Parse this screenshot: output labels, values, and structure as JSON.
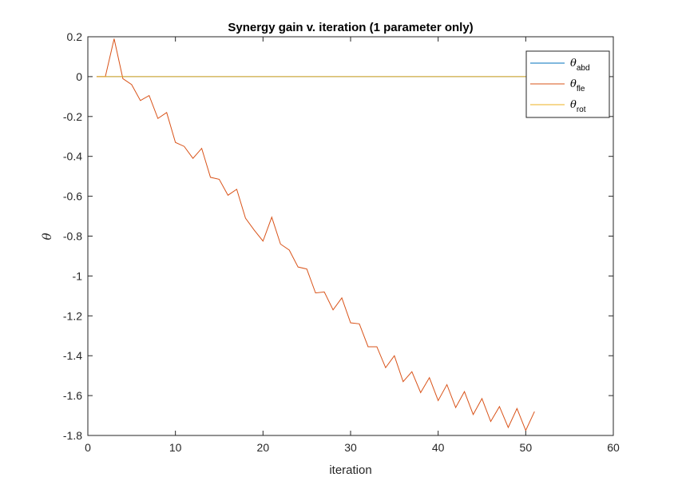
{
  "chart_data": {
    "type": "line",
    "title": "Synergy gain v. iteration (1 parameter only)",
    "xlabel": "iteration",
    "ylabel": "θ",
    "xlim": [
      0,
      60
    ],
    "ylim": [
      -1.8,
      0.2
    ],
    "xticks": [
      0,
      10,
      20,
      30,
      40,
      50,
      60
    ],
    "yticks": [
      0.2,
      0,
      -0.2,
      -0.4,
      -0.6,
      -0.8,
      -1,
      -1.2,
      -1.4,
      -1.6,
      -1.8
    ],
    "xtick_labels": [
      "0",
      "10",
      "20",
      "30",
      "40",
      "50",
      "60"
    ],
    "ytick_labels": [
      "0.2",
      "0",
      "-0.2",
      "-0.4",
      "-0.6",
      "-0.8",
      "-1",
      "-1.2",
      "-1.4",
      "-1.6",
      "-1.8"
    ],
    "grid": false,
    "legend_position": "top-right",
    "series": [
      {
        "name": "θ",
        "subscript": "abd",
        "color": "#0072BD",
        "x": [
          1,
          51
        ],
        "y": [
          0,
          0
        ]
      },
      {
        "name": "θ",
        "subscript": "fle",
        "color": "#D95319",
        "x": [
          1,
          2,
          3,
          4,
          5,
          6,
          7,
          8,
          9,
          10,
          11,
          12,
          13,
          14,
          15,
          16,
          17,
          18,
          19,
          20,
          21,
          22,
          23,
          24,
          25,
          26,
          27,
          28,
          29,
          30,
          31,
          32,
          33,
          34,
          35,
          36,
          37,
          38,
          39,
          40,
          41,
          42,
          43,
          44,
          45,
          46,
          47,
          48,
          49,
          50,
          51
        ],
        "y": [
          0,
          0,
          0.19,
          -0.01,
          -0.04,
          -0.12,
          -0.095,
          -0.21,
          -0.18,
          -0.33,
          -0.35,
          -0.41,
          -0.36,
          -0.505,
          -0.515,
          -0.595,
          -0.565,
          -0.71,
          -0.77,
          -0.825,
          -0.705,
          -0.84,
          -0.87,
          -0.955,
          -0.965,
          -1.085,
          -1.08,
          -1.17,
          -1.11,
          -1.235,
          -1.24,
          -1.355,
          -1.355,
          -1.46,
          -1.4,
          -1.53,
          -1.48,
          -1.585,
          -1.51,
          -1.625,
          -1.545,
          -1.66,
          -1.58,
          -1.695,
          -1.615,
          -1.73,
          -1.655,
          -1.76,
          -1.665,
          -1.775,
          -1.68
        ]
      },
      {
        "name": "θ",
        "subscript": "rot",
        "color": "#EDB120",
        "x": [
          1,
          51
        ],
        "y": [
          0,
          0
        ]
      }
    ]
  }
}
